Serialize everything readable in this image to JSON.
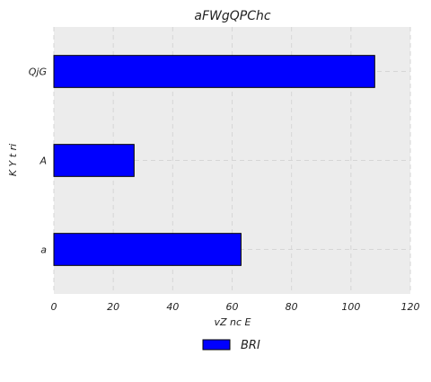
{
  "chart_data": {
    "type": "bar",
    "orientation": "horizontal",
    "title": "aFWgQPChc",
    "xlabel": "vZ nc E",
    "ylabel": "K Y t  ri",
    "categories": [
      "a",
      "A",
      "QjG"
    ],
    "series": [
      {
        "name": "BRI",
        "values": [
          63,
          27,
          108
        ]
      }
    ],
    "xlim": [
      0,
      120
    ],
    "xticks": [
      0,
      20,
      40,
      60,
      80,
      100,
      120
    ],
    "grid": true,
    "legend": "bottom-center",
    "colors": {
      "bar": "#0000ff",
      "bar_edge": "#000000",
      "plot_background": "#ececec",
      "grid": "#d6d6d6"
    }
  }
}
